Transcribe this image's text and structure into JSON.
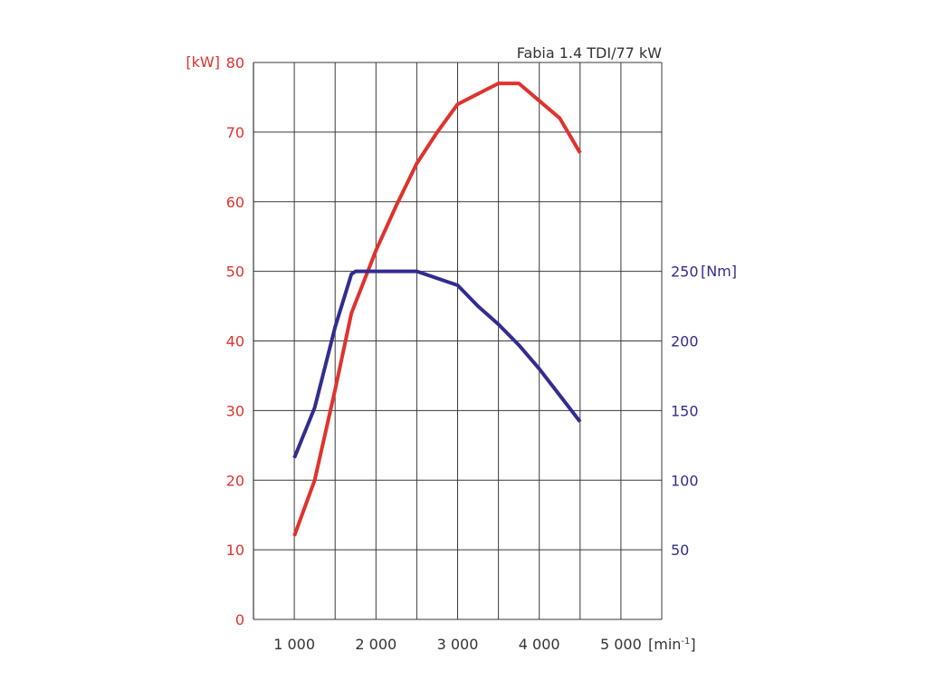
{
  "colors": {
    "power": "#e0322d",
    "torque": "#332c8f",
    "grid": "#3a3a3a",
    "text": "#333333"
  },
  "chart_data": {
    "type": "line",
    "title": "Fabia 1.4 TDI/77 kW",
    "xlabel": "[min",
    "xlabel_superscript": "-1",
    "xlabel_suffix": "]",
    "x_range": [
      500,
      5500
    ],
    "x_gridlines": [
      1000,
      1500,
      2000,
      2500,
      3000,
      3500,
      4000,
      4500,
      5000,
      5500
    ],
    "x_ticks": [
      {
        "value": 1000,
        "label": "1 000"
      },
      {
        "value": 2000,
        "label": "2 000"
      },
      {
        "value": 3000,
        "label": "3 000"
      },
      {
        "value": 4000,
        "label": "4 000"
      },
      {
        "value": 5000,
        "label": "5 000"
      }
    ],
    "y_left": {
      "label": "[kW]",
      "range": [
        0,
        80
      ],
      "ticks": [
        {
          "value": 0,
          "label": "0"
        },
        {
          "value": 10,
          "label": "10"
        },
        {
          "value": 20,
          "label": "20"
        },
        {
          "value": 30,
          "label": "30"
        },
        {
          "value": 40,
          "label": "40"
        },
        {
          "value": 50,
          "label": "50"
        },
        {
          "value": 60,
          "label": "60"
        },
        {
          "value": 70,
          "label": "70"
        },
        {
          "value": 80,
          "label": "80"
        }
      ]
    },
    "y_right": {
      "label": "[Nm]",
      "range": [
        0,
        400
      ],
      "ticks": [
        {
          "value": 50,
          "label": "50"
        },
        {
          "value": 100,
          "label": "100"
        },
        {
          "value": 150,
          "label": "150"
        },
        {
          "value": 200,
          "label": "200"
        },
        {
          "value": 250,
          "label": "250"
        }
      ]
    },
    "series": [
      {
        "key": "power",
        "axis": "left",
        "color": "#e0322d",
        "points": [
          [
            1000,
            12
          ],
          [
            1250,
            20
          ],
          [
            1500,
            33
          ],
          [
            1700,
            44
          ],
          [
            2000,
            53
          ],
          [
            2250,
            59.5
          ],
          [
            2500,
            65.5
          ],
          [
            2750,
            70
          ],
          [
            3000,
            74
          ],
          [
            3250,
            75.5
          ],
          [
            3500,
            77
          ],
          [
            3750,
            77
          ],
          [
            4000,
            74.5
          ],
          [
            4250,
            72
          ],
          [
            4500,
            67
          ]
        ]
      },
      {
        "key": "torque",
        "axis": "right",
        "color": "#332c8f",
        "points": [
          [
            1000,
            116
          ],
          [
            1250,
            152
          ],
          [
            1500,
            210
          ],
          [
            1700,
            248
          ],
          [
            1750,
            250
          ],
          [
            2000,
            250
          ],
          [
            2500,
            250
          ],
          [
            3000,
            240
          ],
          [
            3250,
            225
          ],
          [
            3500,
            212
          ],
          [
            3750,
            197
          ],
          [
            4000,
            180
          ],
          [
            4250,
            161
          ],
          [
            4500,
            142
          ]
        ]
      }
    ]
  }
}
